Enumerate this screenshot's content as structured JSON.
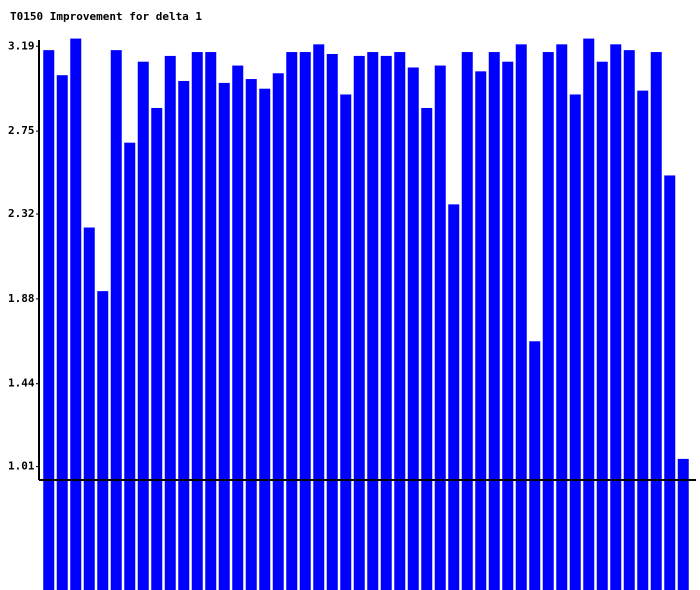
{
  "chart_data": {
    "type": "bar",
    "title": "T0150 Improvement for delta 1",
    "categories": [
      null,
      null,
      null,
      null,
      null,
      null,
      null,
      null,
      null,
      null,
      null,
      null,
      null,
      null,
      null,
      null,
      null,
      null,
      null,
      null,
      null,
      null,
      null,
      null,
      null,
      null,
      null,
      null,
      null,
      null,
      null,
      null,
      null,
      null,
      null,
      null,
      null,
      null,
      null,
      null,
      null,
      null,
      null,
      null,
      null,
      null,
      null,
      null
    ],
    "values": [
      3.17,
      3.04,
      3.23,
      2.25,
      1.92,
      3.17,
      2.69,
      3.11,
      2.87,
      3.14,
      3.01,
      3.16,
      3.16,
      3.0,
      3.09,
      3.02,
      2.97,
      3.05,
      3.16,
      3.16,
      3.2,
      3.15,
      2.94,
      3.14,
      3.16,
      3.14,
      3.16,
      3.08,
      2.87,
      3.09,
      2.37,
      3.16,
      3.06,
      3.16,
      3.11,
      3.2,
      1.66,
      3.16,
      3.2,
      2.94,
      3.23,
      3.11,
      3.2,
      3.17,
      2.96,
      3.16,
      2.52,
      1.05
    ],
    "color": "#0000ff",
    "ylim": [
      0.37,
      3.43
    ],
    "yticks": [
      1.01,
      1.44,
      1.88,
      2.32,
      2.75,
      3.19
    ],
    "grid": false
  }
}
